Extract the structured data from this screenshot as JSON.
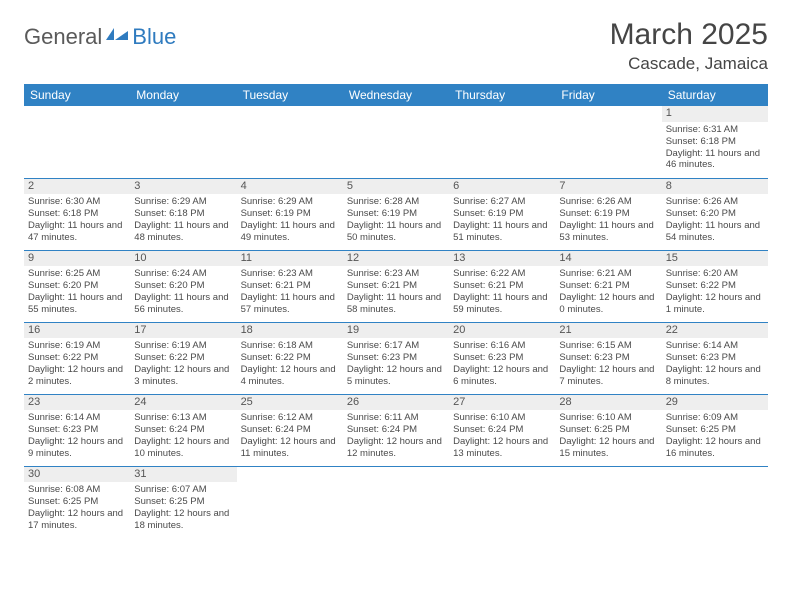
{
  "logo": {
    "general": "General",
    "blue": "Blue"
  },
  "title": "March 2025",
  "location": "Cascade, Jamaica",
  "colors": {
    "header_bg": "#3082c4",
    "header_text": "#ffffff",
    "border": "#3082c4",
    "daynum_bg": "#eeeeee",
    "text": "#4a4a4a",
    "logo_blue": "#2f7bbf",
    "logo_gray": "#5a5a5a"
  },
  "weekdays": [
    "Sunday",
    "Monday",
    "Tuesday",
    "Wednesday",
    "Thursday",
    "Friday",
    "Saturday"
  ],
  "weeks": [
    [
      null,
      null,
      null,
      null,
      null,
      null,
      {
        "n": "1",
        "sr": "6:31 AM",
        "ss": "6:18 PM",
        "dl": "11 hours and 46 minutes."
      }
    ],
    [
      {
        "n": "2",
        "sr": "6:30 AM",
        "ss": "6:18 PM",
        "dl": "11 hours and 47 minutes."
      },
      {
        "n": "3",
        "sr": "6:29 AM",
        "ss": "6:18 PM",
        "dl": "11 hours and 48 minutes."
      },
      {
        "n": "4",
        "sr": "6:29 AM",
        "ss": "6:19 PM",
        "dl": "11 hours and 49 minutes."
      },
      {
        "n": "5",
        "sr": "6:28 AM",
        "ss": "6:19 PM",
        "dl": "11 hours and 50 minutes."
      },
      {
        "n": "6",
        "sr": "6:27 AM",
        "ss": "6:19 PM",
        "dl": "11 hours and 51 minutes."
      },
      {
        "n": "7",
        "sr": "6:26 AM",
        "ss": "6:19 PM",
        "dl": "11 hours and 53 minutes."
      },
      {
        "n": "8",
        "sr": "6:26 AM",
        "ss": "6:20 PM",
        "dl": "11 hours and 54 minutes."
      }
    ],
    [
      {
        "n": "9",
        "sr": "6:25 AM",
        "ss": "6:20 PM",
        "dl": "11 hours and 55 minutes."
      },
      {
        "n": "10",
        "sr": "6:24 AM",
        "ss": "6:20 PM",
        "dl": "11 hours and 56 minutes."
      },
      {
        "n": "11",
        "sr": "6:23 AM",
        "ss": "6:21 PM",
        "dl": "11 hours and 57 minutes."
      },
      {
        "n": "12",
        "sr": "6:23 AM",
        "ss": "6:21 PM",
        "dl": "11 hours and 58 minutes."
      },
      {
        "n": "13",
        "sr": "6:22 AM",
        "ss": "6:21 PM",
        "dl": "11 hours and 59 minutes."
      },
      {
        "n": "14",
        "sr": "6:21 AM",
        "ss": "6:21 PM",
        "dl": "12 hours and 0 minutes."
      },
      {
        "n": "15",
        "sr": "6:20 AM",
        "ss": "6:22 PM",
        "dl": "12 hours and 1 minute."
      }
    ],
    [
      {
        "n": "16",
        "sr": "6:19 AM",
        "ss": "6:22 PM",
        "dl": "12 hours and 2 minutes."
      },
      {
        "n": "17",
        "sr": "6:19 AM",
        "ss": "6:22 PM",
        "dl": "12 hours and 3 minutes."
      },
      {
        "n": "18",
        "sr": "6:18 AM",
        "ss": "6:22 PM",
        "dl": "12 hours and 4 minutes."
      },
      {
        "n": "19",
        "sr": "6:17 AM",
        "ss": "6:23 PM",
        "dl": "12 hours and 5 minutes."
      },
      {
        "n": "20",
        "sr": "6:16 AM",
        "ss": "6:23 PM",
        "dl": "12 hours and 6 minutes."
      },
      {
        "n": "21",
        "sr": "6:15 AM",
        "ss": "6:23 PM",
        "dl": "12 hours and 7 minutes."
      },
      {
        "n": "22",
        "sr": "6:14 AM",
        "ss": "6:23 PM",
        "dl": "12 hours and 8 minutes."
      }
    ],
    [
      {
        "n": "23",
        "sr": "6:14 AM",
        "ss": "6:23 PM",
        "dl": "12 hours and 9 minutes."
      },
      {
        "n": "24",
        "sr": "6:13 AM",
        "ss": "6:24 PM",
        "dl": "12 hours and 10 minutes."
      },
      {
        "n": "25",
        "sr": "6:12 AM",
        "ss": "6:24 PM",
        "dl": "12 hours and 11 minutes."
      },
      {
        "n": "26",
        "sr": "6:11 AM",
        "ss": "6:24 PM",
        "dl": "12 hours and 12 minutes."
      },
      {
        "n": "27",
        "sr": "6:10 AM",
        "ss": "6:24 PM",
        "dl": "12 hours and 13 minutes."
      },
      {
        "n": "28",
        "sr": "6:10 AM",
        "ss": "6:25 PM",
        "dl": "12 hours and 15 minutes."
      },
      {
        "n": "29",
        "sr": "6:09 AM",
        "ss": "6:25 PM",
        "dl": "12 hours and 16 minutes."
      }
    ],
    [
      {
        "n": "30",
        "sr": "6:08 AM",
        "ss": "6:25 PM",
        "dl": "12 hours and 17 minutes."
      },
      {
        "n": "31",
        "sr": "6:07 AM",
        "ss": "6:25 PM",
        "dl": "12 hours and 18 minutes."
      },
      null,
      null,
      null,
      null,
      null
    ]
  ],
  "labels": {
    "sunrise": "Sunrise:",
    "sunset": "Sunset:",
    "daylight": "Daylight:"
  }
}
